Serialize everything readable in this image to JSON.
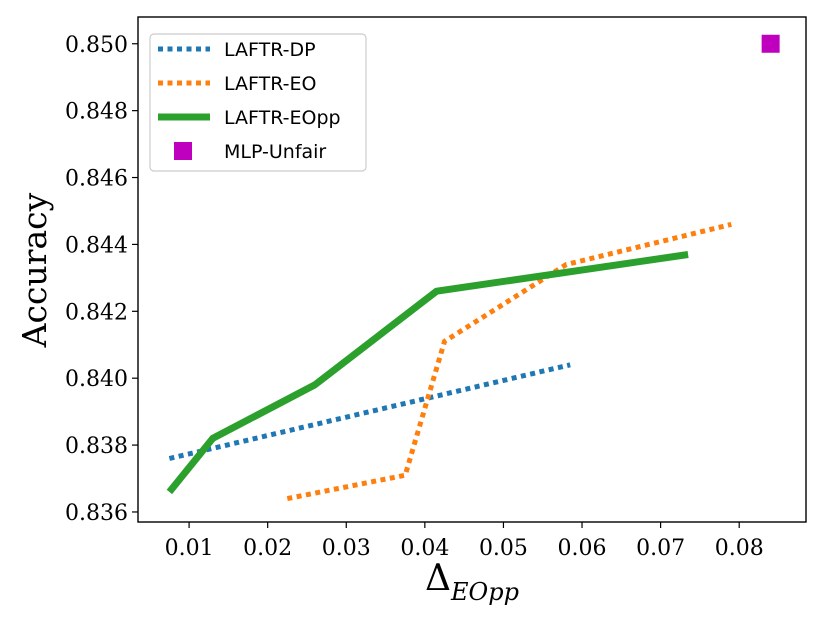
{
  "chart_data": {
    "type": "line",
    "title": "",
    "xlabel": "Δ",
    "xlabel_subscript": "EOpp",
    "ylabel": "Accuracy",
    "xlim": [
      0.0035,
      0.0885
    ],
    "ylim": [
      0.8357,
      0.8508
    ],
    "xticks": [
      0.01,
      0.02,
      0.03,
      0.04,
      0.05,
      0.06,
      0.07,
      0.08
    ],
    "xtick_labels": [
      "0.01",
      "0.02",
      "0.03",
      "0.04",
      "0.05",
      "0.06",
      "0.07",
      "0.08"
    ],
    "yticks": [
      0.836,
      0.838,
      0.84,
      0.842,
      0.844,
      0.846,
      0.848,
      0.85
    ],
    "ytick_labels": [
      "0.836",
      "0.838",
      "0.840",
      "0.842",
      "0.844",
      "0.846",
      "0.848",
      "0.850"
    ],
    "grid": false,
    "legend_position": "top-left",
    "series": [
      {
        "name": "LAFTR-DP",
        "color": "#1f77b4",
        "style": "dotted",
        "x": [
          0.0075,
          0.0585
        ],
        "y": [
          0.8376,
          0.8404
        ]
      },
      {
        "name": "LAFTR-EO",
        "color": "#ff7f0e",
        "style": "dotted",
        "x": [
          0.0225,
          0.0375,
          0.0425,
          0.058,
          0.079
        ],
        "y": [
          0.8364,
          0.8371,
          0.8411,
          0.8434,
          0.8446
        ]
      },
      {
        "name": "LAFTR-EOpp",
        "color": "#2ca02c",
        "style": "solid",
        "x": [
          0.0075,
          0.013,
          0.026,
          0.0415,
          0.0735
        ],
        "y": [
          0.8366,
          0.8382,
          0.8398,
          0.8426,
          0.8437
        ]
      },
      {
        "name": "MLP-Unfair",
        "color": "#bf00bf",
        "style": "marker-square",
        "x": [
          0.084
        ],
        "y": [
          0.85
        ]
      }
    ]
  }
}
